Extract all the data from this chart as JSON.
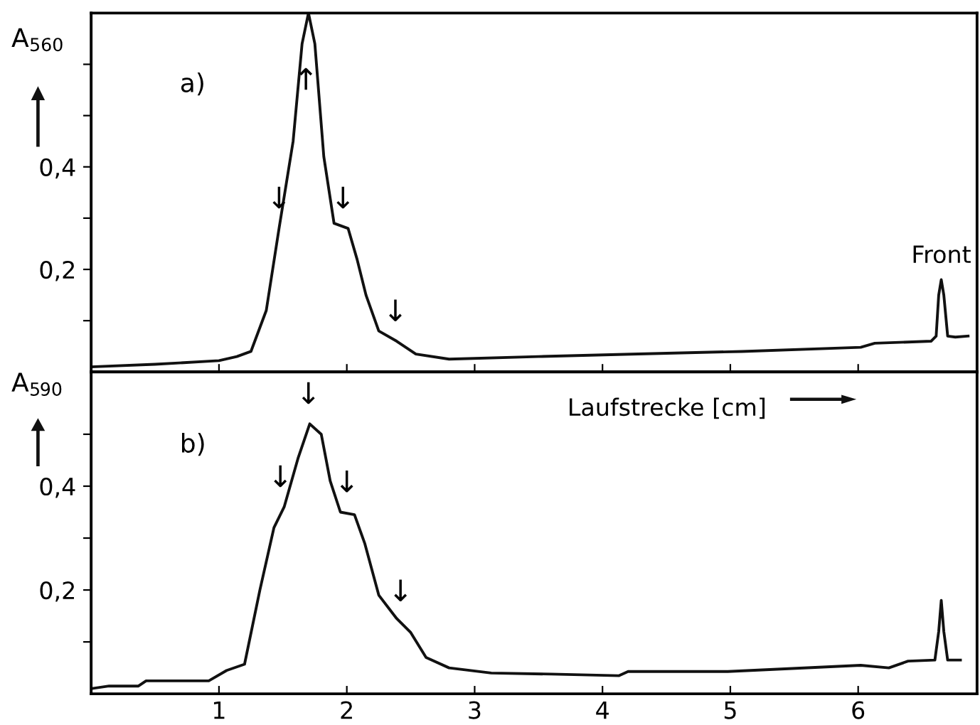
{
  "chart_data": [
    {
      "type": "line",
      "ylabel": "A$_{560}$",
      "tick_labels": "y",
      "grid": false,
      "xlim": [
        0,
        6.93
      ],
      "xticks": [
        {
          "value": 1,
          "label": null
        },
        {
          "value": 2,
          "label": null
        },
        {
          "value": 3,
          "label": null
        },
        {
          "value": 4,
          "label": null
        },
        {
          "value": 5,
          "label": null
        },
        {
          "value": 6,
          "label": null
        }
      ],
      "ylim": [
        0,
        0.7
      ],
      "yticks": [
        {
          "value": 0.1,
          "label": null
        },
        {
          "value": 0.2,
          "label": "0,2"
        },
        {
          "value": 0.3,
          "label": null
        },
        {
          "value": 0.4,
          "label": "0,4"
        },
        {
          "value": 0.5,
          "label": null
        },
        {
          "value": 0.6,
          "label": null
        }
      ],
      "series": [
        {
          "color": "#111111",
          "x": [
            0,
            0.5,
            1.0,
            1.14,
            1.25,
            1.37,
            1.47,
            1.58,
            1.65,
            1.7,
            1.75,
            1.82,
            1.9,
            2.01,
            2.08,
            2.15,
            2.25,
            2.39,
            2.54,
            2.8,
            3.5,
            4.28,
            5.09,
            6.02,
            6.13,
            6.57,
            6.61,
            6.63,
            6.65,
            6.67,
            6.7,
            6.76,
            6.86
          ],
          "values": [
            0.01,
            0.015,
            0.022,
            0.03,
            0.04,
            0.12,
            0.28,
            0.45,
            0.64,
            0.7,
            0.64,
            0.42,
            0.29,
            0.28,
            0.22,
            0.15,
            0.08,
            0.06,
            0.035,
            0.025,
            0.03,
            0.035,
            0.04,
            0.048,
            0.056,
            0.06,
            0.07,
            0.15,
            0.18,
            0.15,
            0.07,
            0.068,
            0.07
          ]
        }
      ],
      "annotations": [
        "a)",
        {
          "text": "↓",
          "x": 1.47,
          "y": 0.28
        },
        {
          "text": "↑",
          "x": 1.68,
          "y": 0.6
        },
        {
          "text": "↓",
          "x": 1.97,
          "y": 0.28
        },
        {
          "text": "↓",
          "x": 2.38,
          "y": 0.06
        },
        {
          "text": "Front",
          "x": 6.65,
          "y": 0.18
        }
      ]
    },
    {
      "type": "line",
      "ylabel": "A$_{590}$",
      "xlabel": "Laufstrecke [cm]",
      "grid": false,
      "xlim": [
        0,
        6.93
      ],
      "xticks": [
        1,
        2,
        3,
        4,
        5,
        6
      ],
      "ylim": [
        0,
        0.62
      ],
      "yticks": [
        {
          "value": 0.1,
          "label": null
        },
        {
          "value": 0.2,
          "label": "0,2"
        },
        {
          "value": 0.3,
          "label": null
        },
        {
          "value": 0.4,
          "label": "0,4"
        },
        {
          "value": 0.5,
          "label": null
        }
      ],
      "series": [
        {
          "color": "#111111",
          "x": [
            0,
            0.14,
            0.37,
            0.43,
            0.92,
            1.06,
            1.2,
            1.32,
            1.43,
            1.51,
            1.62,
            1.71,
            1.8,
            1.87,
            1.95,
            2.06,
            2.14,
            2.25,
            2.39,
            2.5,
            2.62,
            2.8,
            3.13,
            3.6,
            4.13,
            4.2,
            4.98,
            6.02,
            6.24,
            6.39,
            6.6,
            6.63,
            6.65,
            6.67,
            6.7,
            6.8
          ],
          "values": [
            0.01,
            0.015,
            0.015,
            0.025,
            0.025,
            0.045,
            0.057,
            0.2,
            0.32,
            0.36,
            0.455,
            0.52,
            0.5,
            0.41,
            0.35,
            0.345,
            0.29,
            0.19,
            0.145,
            0.118,
            0.07,
            0.05,
            0.04,
            0.038,
            0.035,
            0.043,
            0.043,
            0.055,
            0.05,
            0.063,
            0.065,
            0.12,
            0.18,
            0.12,
            0.065,
            0.065
          ]
        }
      ],
      "annotations": [
        "b)",
        {
          "text": "↓",
          "x": 1.48,
          "y": 0.36
        },
        {
          "text": "↓",
          "x": 1.7,
          "y": 0.52
        },
        {
          "text": "↓",
          "x": 2.0,
          "y": 0.35
        },
        {
          "text": "↓",
          "x": 2.42,
          "y": 0.14
        }
      ]
    }
  ]
}
